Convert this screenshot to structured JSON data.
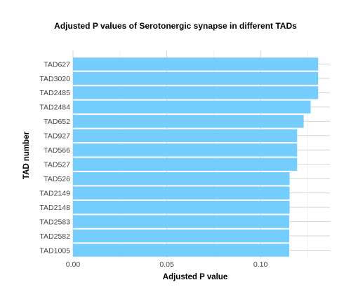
{
  "chart_data": {
    "type": "bar",
    "orientation": "horizontal",
    "title": "Adjusted P values of Serotonergic synapse in different TADs",
    "xlabel": "Adjusted P value",
    "ylabel": "TAD number",
    "categories": [
      "TAD627",
      "TAD3020",
      "TAD2485",
      "TAD2484",
      "TAD652",
      "TAD927",
      "TAD566",
      "TAD527",
      "TAD526",
      "TAD2149",
      "TAD2148",
      "TAD2583",
      "TAD2582",
      "TAD1005"
    ],
    "values": [
      0.1307,
      0.1307,
      0.1307,
      0.1267,
      0.123,
      0.1195,
      0.1195,
      0.1195,
      0.1155,
      0.1155,
      0.1155,
      0.1153,
      0.1153,
      0.1153
    ],
    "xlim": [
      0,
      0.137
    ],
    "xticks": [
      0.0,
      0.05,
      0.1
    ],
    "xtick_labels": [
      "0.00",
      "0.05",
      "0.10"
    ],
    "grid": true,
    "bar_color": "#74cdfd",
    "background": "#ffffff"
  }
}
